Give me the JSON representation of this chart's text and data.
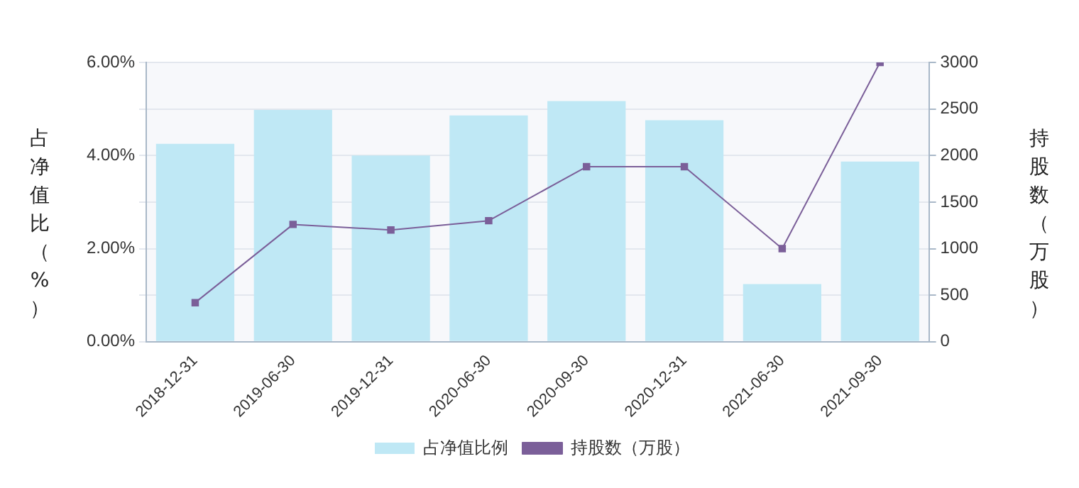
{
  "chart_data": {
    "type": "bar",
    "ylabel": "占净值比（%）",
    "y2label": "持股数（万股）",
    "categories": [
      "2018-12-31",
      "2019-06-30",
      "2019-12-31",
      "2020-06-30",
      "2020-09-30",
      "2020-12-31",
      "2021-06-30",
      "2021-09-30"
    ],
    "series": [
      {
        "name": "占净值比例",
        "color": "#bfe8f5",
        "values": [
          4.25,
          4.98,
          4.0,
          4.86,
          5.17,
          4.76,
          1.24,
          3.87
        ]
      },
      {
        "name": "持股数（万股）",
        "type": "line",
        "axis": "y2",
        "color": "#7b5f99",
        "values": [
          420,
          1260,
          1200,
          1300,
          1880,
          1880,
          1000,
          3000
        ]
      }
    ],
    "ylim": [
      0,
      6
    ],
    "yticks": [
      {
        "value": 0,
        "label": "0.00%"
      },
      {
        "value": 1,
        "label": null
      },
      {
        "value": 2,
        "label": "2.00%"
      },
      {
        "value": 3,
        "label": null
      },
      {
        "value": 4,
        "label": "4.00%"
      },
      {
        "value": 5,
        "label": null
      },
      {
        "value": 6,
        "label": "6.00%"
      }
    ],
    "y2lim": [
      0,
      3000
    ],
    "y2ticks": [
      0,
      500,
      1000,
      1500,
      2000,
      2500,
      3000
    ],
    "grid": "y",
    "legend": "bottom",
    "marker": "square"
  }
}
